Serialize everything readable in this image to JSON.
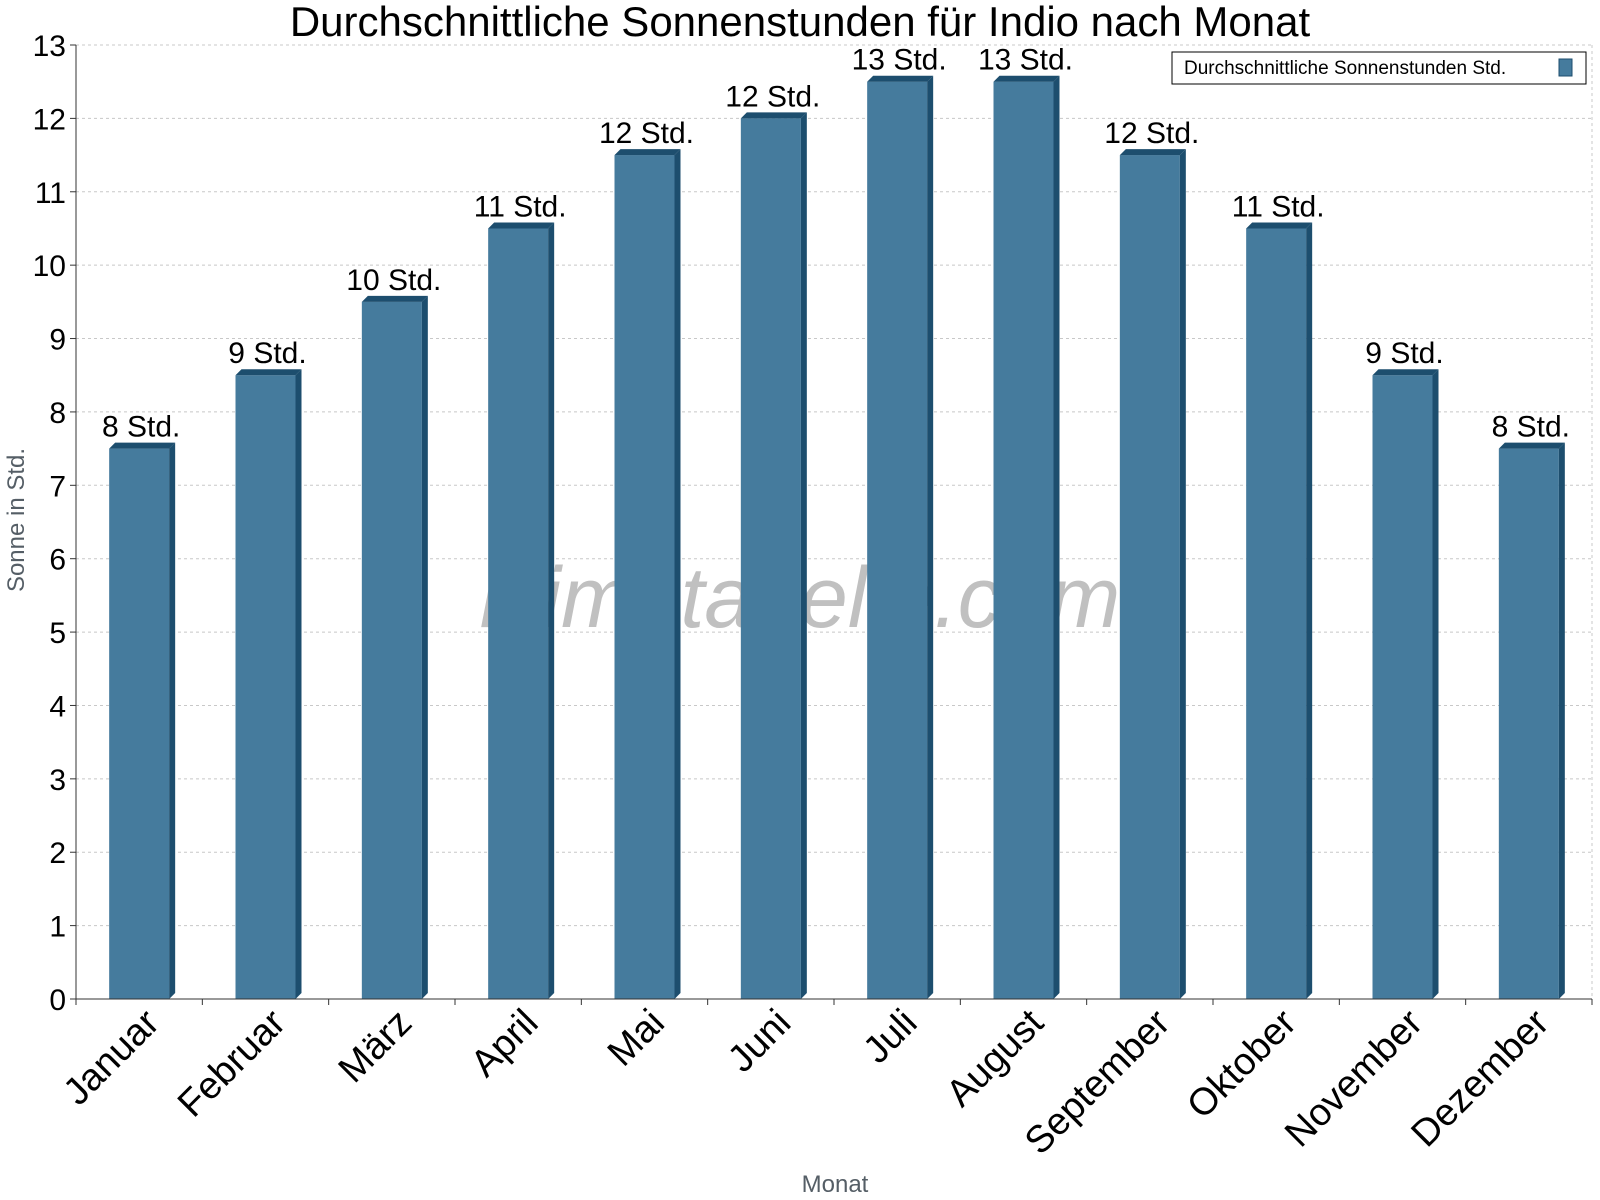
{
  "chart_data": {
    "type": "bar",
    "title": "Durchschnittliche Sonnenstunden für Indio nach Monat",
    "xlabel": "Monat",
    "ylabel": "Sonne in Std.",
    "ylim": [
      0,
      13
    ],
    "yticks": [
      "0",
      "1",
      "2",
      "3",
      "4",
      "5",
      "6",
      "7",
      "8",
      "9",
      "10",
      "11",
      "12",
      "13"
    ],
    "grid": true,
    "legend_position": "top-right",
    "categories": [
      "Januar",
      "Februar",
      "März",
      "April",
      "Mai",
      "Juni",
      "Juli",
      "August",
      "September",
      "Oktober",
      "November",
      "Dezember"
    ],
    "series": [
      {
        "name": "Durchschnittliche Sonnenstunden Std.",
        "values": [
          7.5,
          8.5,
          9.5,
          10.5,
          11.5,
          12,
          12.5,
          12.5,
          11.5,
          10.5,
          8.5,
          7.5
        ],
        "labels": [
          "8 Std.",
          "9 Std.",
          "10 Std.",
          "11 Std.",
          "12 Std.",
          "12 Std.",
          "13 Std.",
          "13 Std.",
          "12 Std.",
          "11 Std.",
          "9 Std.",
          "8 Std."
        ],
        "color": "#457b9d",
        "side_color": "#1d4e6e"
      }
    ],
    "watermark": "klimatabelle.com"
  }
}
